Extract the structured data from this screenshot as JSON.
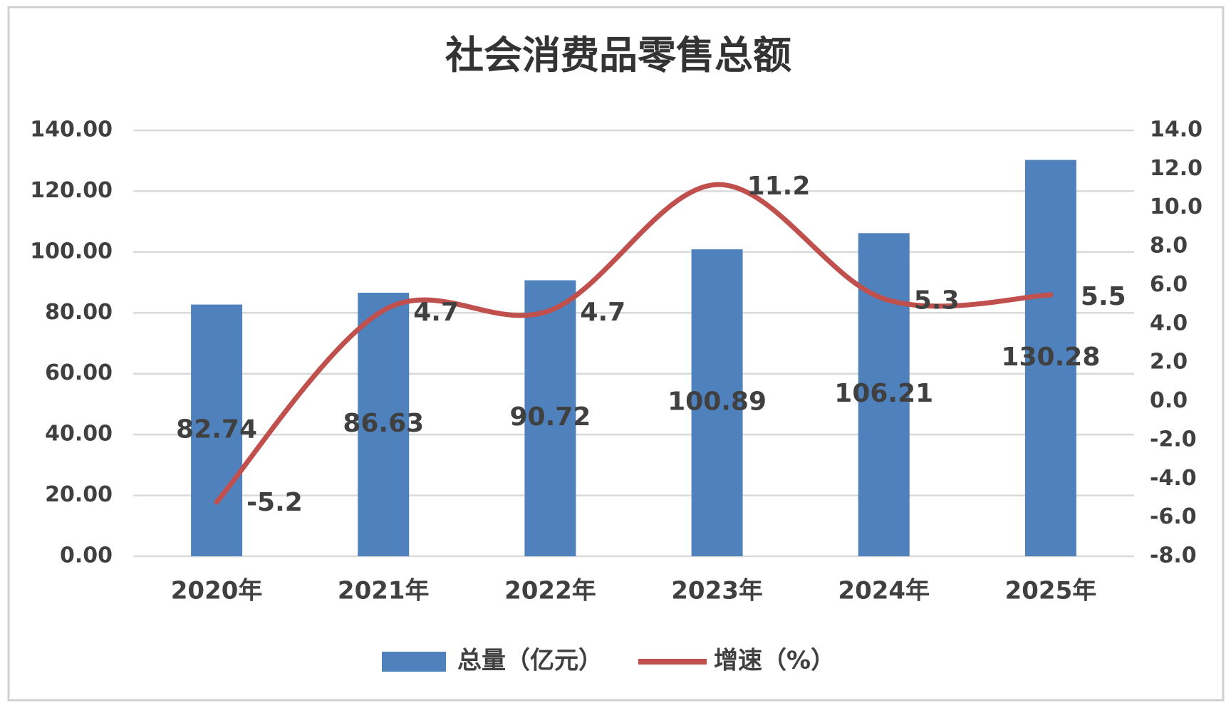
{
  "chart_data": {
    "type": "bar-line",
    "title": "社会消费品零售总额",
    "categories": [
      "2020年",
      "2021年",
      "2022年",
      "2023年",
      "2024年",
      "2025年"
    ],
    "series": [
      {
        "name": "总量（亿元）",
        "type": "bar",
        "color": "#4f81bd",
        "values": [
          82.74,
          86.63,
          90.72,
          100.89,
          106.21,
          130.28
        ]
      },
      {
        "name": "增速（%）",
        "type": "line",
        "axis": "y2",
        "color": "#c0504d",
        "smooth": true,
        "values": [
          -5.2,
          4.7,
          4.7,
          11.2,
          5.3,
          5.5
        ]
      }
    ],
    "ylim": [
      0,
      140
    ],
    "yticks": [
      {
        "value": 0,
        "label": "0.00"
      },
      {
        "value": 20,
        "label": "20.00"
      },
      {
        "value": 40,
        "label": "40.00"
      },
      {
        "value": 60,
        "label": "60.00"
      },
      {
        "value": 80,
        "label": "80.00"
      },
      {
        "value": 100,
        "label": "100.00"
      },
      {
        "value": 120,
        "label": "120.00"
      },
      {
        "value": 140,
        "label": "140.00"
      }
    ],
    "y2lim": [
      -8,
      14
    ],
    "y2ticks": [
      {
        "value": -8,
        "label": "-8.0"
      },
      {
        "value": -6,
        "label": "-6.0"
      },
      {
        "value": -4,
        "label": "-4.0"
      },
      {
        "value": -2,
        "label": "-2.0"
      },
      {
        "value": 0,
        "label": "0.0"
      },
      {
        "value": 2,
        "label": "2.0"
      },
      {
        "value": 4,
        "label": "4.0"
      },
      {
        "value": 6,
        "label": "6.0"
      },
      {
        "value": 8,
        "label": "8.0"
      },
      {
        "value": 10,
        "label": "10.0"
      },
      {
        "value": 12,
        "label": "12.0"
      },
      {
        "value": 14,
        "label": "14.0"
      }
    ],
    "grid": true,
    "legend": "bottom"
  }
}
